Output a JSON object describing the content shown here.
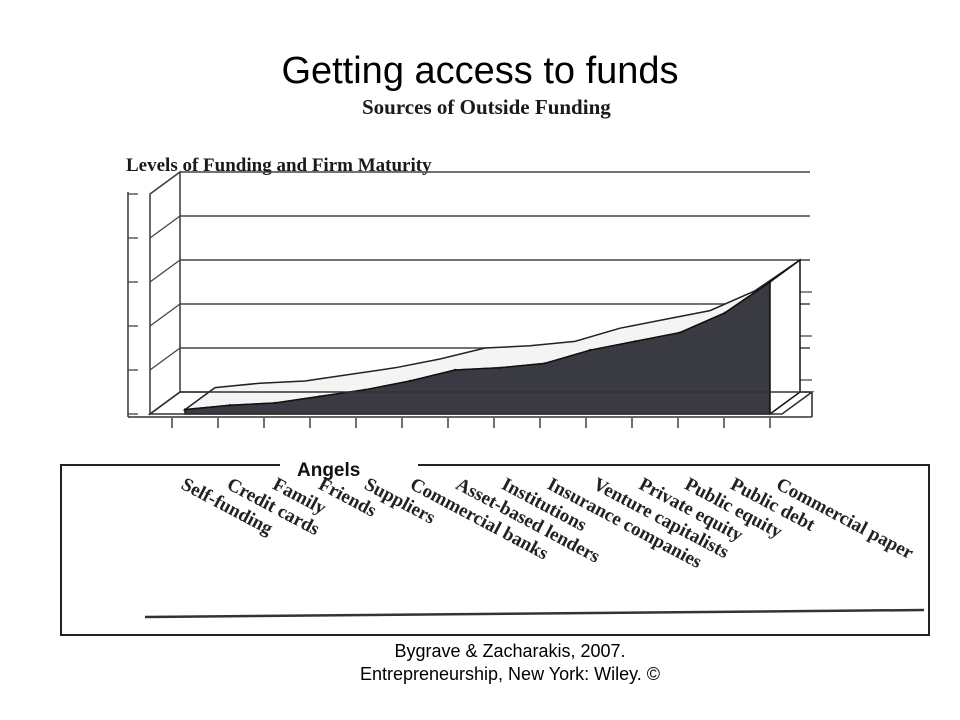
{
  "slide": {
    "title": "Getting access to funds",
    "citation": "Bygrave & Zacharakis, 2007. Entrepreneurship, New York: Wiley. ©"
  },
  "figure": {
    "title": "Sources of Outside Funding",
    "subtitle": "Levels of Funding and Firm Maturity",
    "callout": "Angels"
  },
  "chart_data": {
    "type": "area",
    "title": "Levels of Funding and Firm Maturity",
    "xlabel": "",
    "ylabel": "",
    "grid": true,
    "three_d": true,
    "area_color": "#3a3b42",
    "ylim": [
      0,
      5
    ],
    "categories": [
      "Self-funding",
      "Credit cards",
      "Family",
      "Friends",
      "Suppliers",
      "Commercial banks",
      "Asset-based lenders",
      "Institutions",
      "Insurance companies",
      "Venture capitalists",
      "Private equity",
      "Public equity",
      "Public debt",
      "Commercial paper"
    ],
    "values": [
      0.1,
      0.2,
      0.25,
      0.4,
      0.55,
      0.75,
      1.0,
      1.05,
      1.15,
      1.45,
      1.65,
      1.85,
      2.3,
      3.0
    ]
  }
}
